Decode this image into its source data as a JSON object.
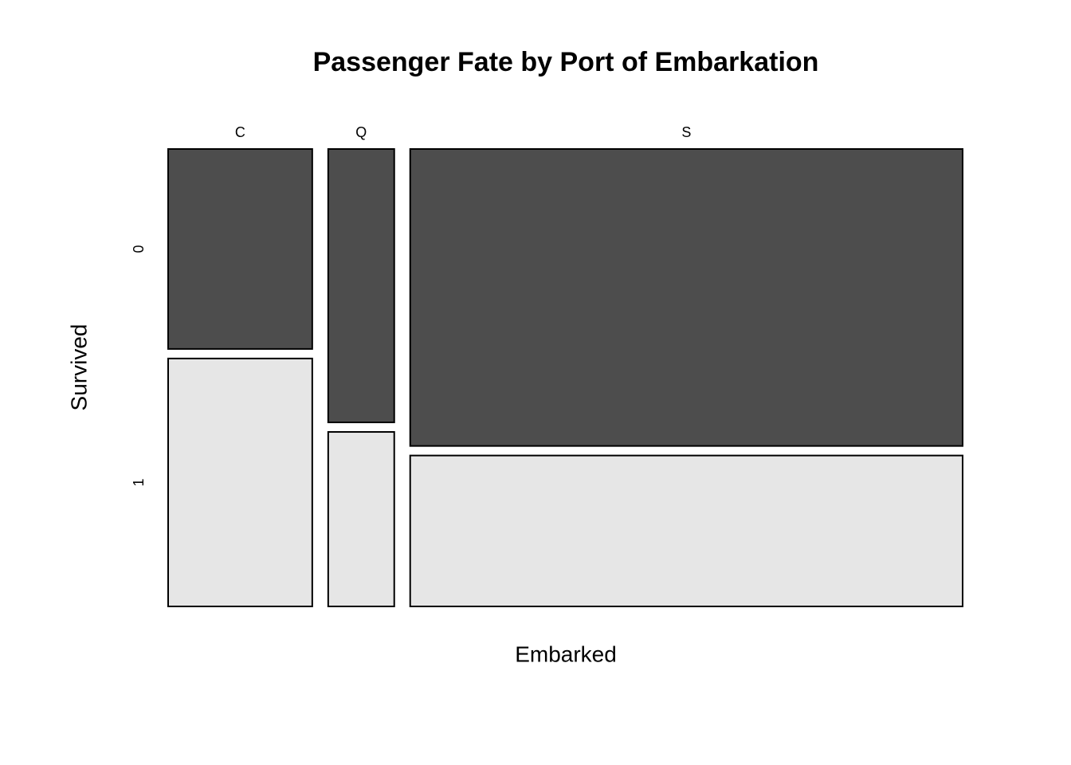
{
  "chart_data": {
    "type": "mosaic",
    "title": "Passenger Fate by Port of Embarkation",
    "x_label": "Embarked",
    "y_label": "Survived",
    "categories": [
      "C",
      "Q",
      "S"
    ],
    "series": [
      {
        "name": "0",
        "color": "#4d4d4d",
        "values": [
          75,
          47,
          427
        ]
      },
      {
        "name": "1",
        "color": "#e6e6e6",
        "values": [
          93,
          30,
          217
        ]
      }
    ]
  }
}
